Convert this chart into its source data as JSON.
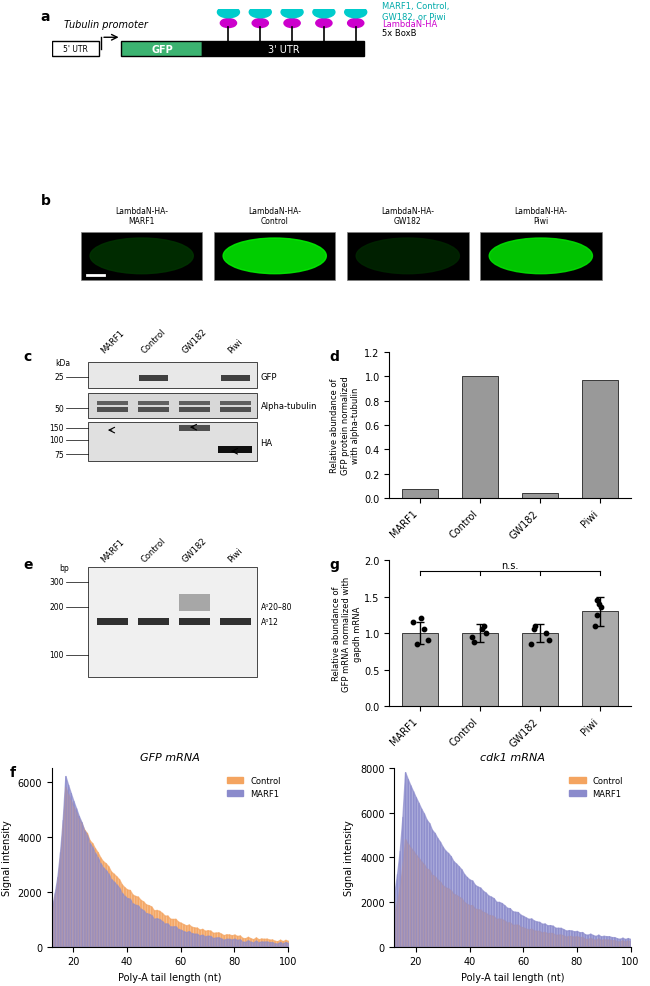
{
  "panel_a": {
    "tubulin_text": "Tubulin promoter",
    "utr5_text": "5' UTR",
    "gfp_text": "GFP",
    "utr3_text": "3' UTR",
    "cyan_text": "MARF1, Control,\nGW182, or Piwi",
    "magenta_text": "LambdaN-HA",
    "boxb_text": "5x BoxB"
  },
  "panel_b": {
    "labels": [
      "LambdaN-HA-\nMARF1",
      "LambdaN-HA-\nControl",
      "LambdaN-HA-\nGW182",
      "LambdaN-HA-\nPiwi"
    ]
  },
  "panel_c": {
    "lane_labels": [
      "MARF1",
      "Control",
      "GW182",
      "Piwi"
    ],
    "kda_labels": [
      "25",
      "50",
      "150",
      "100",
      "75"
    ],
    "band_labels": [
      "GFP",
      "Alpha-tubulin",
      "HA"
    ]
  },
  "panel_d": {
    "categories": [
      "MARF1",
      "Control",
      "GW182",
      "Piwi"
    ],
    "values": [
      0.07,
      1.0,
      0.04,
      0.97
    ],
    "bar_color": "#999999",
    "ylabel": "Relative abundance of\nGFP protein normalized\nwith alpha-tubulin",
    "ylim": [
      0,
      1.2
    ],
    "yticks": [
      0,
      0.2,
      0.4,
      0.6,
      0.8,
      1.0,
      1.2
    ]
  },
  "panel_e": {
    "lane_labels": [
      "MARF1",
      "Control",
      "GW182",
      "Piwi"
    ],
    "bp_labels": [
      "300",
      "200",
      "100"
    ],
    "band_labels": [
      "A⁰20–80",
      "A⁰12"
    ]
  },
  "panel_g": {
    "categories": [
      "MARF1",
      "Control",
      "GW182",
      "Piwi"
    ],
    "values": [
      1.0,
      1.0,
      1.0,
      1.3
    ],
    "errors": [
      0.15,
      0.12,
      0.12,
      0.2
    ],
    "bar_color": "#aaaaaa",
    "ylabel": "Relative abundance of\nGFP mRNA normalized with\ngapdh mRNA",
    "ylim": [
      0,
      2.0
    ],
    "yticks": [
      0.0,
      0.5,
      1.0,
      1.5,
      2.0
    ],
    "ns_text": "n.s.",
    "scatter_marf1": [
      0.85,
      0.9,
      1.05,
      1.2,
      1.15
    ],
    "scatter_control": [
      0.88,
      0.95,
      1.0,
      1.05,
      1.1
    ],
    "scatter_gw182": [
      0.85,
      0.9,
      1.0,
      1.1,
      1.05
    ],
    "scatter_piwi": [
      1.1,
      1.25,
      1.35,
      1.4,
      1.45
    ]
  },
  "panel_f_left": {
    "title": "GFP mRNA",
    "xlabel": "Poly-A tail length (nt)",
    "ylabel": "Signal intensity",
    "xlim": [
      12,
      100
    ],
    "ylim": [
      0,
      6500
    ],
    "yticks": [
      0,
      2000,
      4000,
      6000
    ],
    "legend": [
      "Control",
      "MARF1"
    ],
    "legend_colors": [
      "#f4a460",
      "#8b8bcc"
    ],
    "control_color": "#f4a460",
    "marf1_color": "#8b8bcc"
  },
  "panel_f_right": {
    "title": "cdk1 mRNA",
    "xlabel": "Poly-A tail length (nt)",
    "ylabel": "Signal intensity",
    "xlim": [
      12,
      100
    ],
    "ylim": [
      0,
      8000
    ],
    "yticks": [
      0,
      2000,
      4000,
      6000,
      8000
    ],
    "legend": [
      "Control",
      "MARF1"
    ],
    "legend_colors": [
      "#f4a460",
      "#8b8bcc"
    ],
    "control_color": "#f4a460",
    "marf1_color": "#8b8bcc"
  }
}
